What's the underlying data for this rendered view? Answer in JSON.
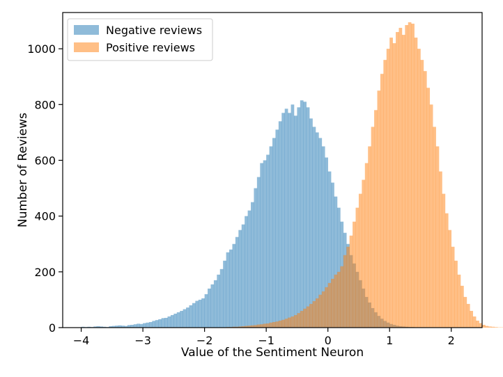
{
  "chart_data": {
    "type": "bar",
    "title": "",
    "xlabel": "Value of the Sentiment Neuron",
    "ylabel": "Number of Reviews",
    "xlim": [
      -4.3,
      2.5
    ],
    "ylim": [
      0,
      1130
    ],
    "xticks": [
      -4,
      -3,
      -2,
      -1,
      0,
      1,
      2
    ],
    "yticks": [
      0,
      200,
      400,
      600,
      800,
      1000
    ],
    "legend_position": "top-left",
    "bin_start": -4.0,
    "bin_width": 0.05,
    "series": [
      {
        "name": "Negative reviews",
        "color": "#1f77b4",
        "alpha": 0.5,
        "values": [
          3,
          2,
          3,
          2,
          4,
          5,
          4,
          3,
          2,
          5,
          6,
          7,
          8,
          7,
          6,
          9,
          10,
          12,
          14,
          13,
          16,
          18,
          20,
          24,
          27,
          30,
          34,
          35,
          40,
          45,
          50,
          55,
          60,
          66,
          72,
          80,
          88,
          96,
          100,
          105,
          120,
          140,
          155,
          170,
          190,
          210,
          240,
          270,
          280,
          300,
          325,
          350,
          370,
          400,
          420,
          450,
          500,
          540,
          590,
          600,
          620,
          650,
          680,
          710,
          740,
          770,
          785,
          770,
          800,
          760,
          790,
          815,
          810,
          790,
          750,
          720,
          700,
          680,
          650,
          610,
          560,
          520,
          470,
          430,
          380,
          340,
          300,
          260,
          230,
          200,
          170,
          140,
          110,
          90,
          70,
          55,
          42,
          32,
          24,
          18,
          13,
          10,
          7,
          5,
          4,
          3,
          2,
          2,
          1,
          1,
          1,
          0,
          0,
          0,
          0,
          0,
          0,
          0,
          0,
          0,
          0,
          0,
          0,
          0,
          0,
          0,
          0,
          0,
          0,
          0,
          0,
          0,
          0,
          0,
          0,
          0,
          0,
          0
        ]
      },
      {
        "name": "Positive reviews",
        "color": "#ff7f0e",
        "alpha": 0.5,
        "values": [
          0,
          0,
          0,
          0,
          0,
          0,
          0,
          0,
          0,
          0,
          0,
          0,
          0,
          0,
          0,
          0,
          0,
          0,
          0,
          0,
          0,
          0,
          0,
          0,
          0,
          0,
          0,
          0,
          0,
          0,
          0,
          0,
          0,
          0,
          0,
          0,
          0,
          0,
          0,
          0,
          0,
          0,
          0,
          0,
          0,
          1,
          1,
          2,
          2,
          3,
          3,
          4,
          5,
          6,
          7,
          8,
          9,
          11,
          12,
          14,
          15,
          18,
          20,
          22,
          25,
          28,
          32,
          36,
          40,
          45,
          52,
          60,
          68,
          76,
          85,
          95,
          105,
          118,
          130,
          145,
          160,
          175,
          190,
          200,
          220,
          260,
          290,
          330,
          380,
          430,
          480,
          530,
          590,
          650,
          720,
          780,
          850,
          910,
          960,
          1000,
          1040,
          1020,
          1060,
          1075,
          1050,
          1085,
          1095,
          1090,
          1040,
          1000,
          960,
          920,
          860,
          800,
          720,
          650,
          560,
          480,
          410,
          350,
          290,
          240,
          190,
          150,
          110,
          85,
          60,
          40,
          25,
          16,
          10,
          6,
          4,
          3,
          2,
          1,
          1
        ]
      }
    ]
  }
}
